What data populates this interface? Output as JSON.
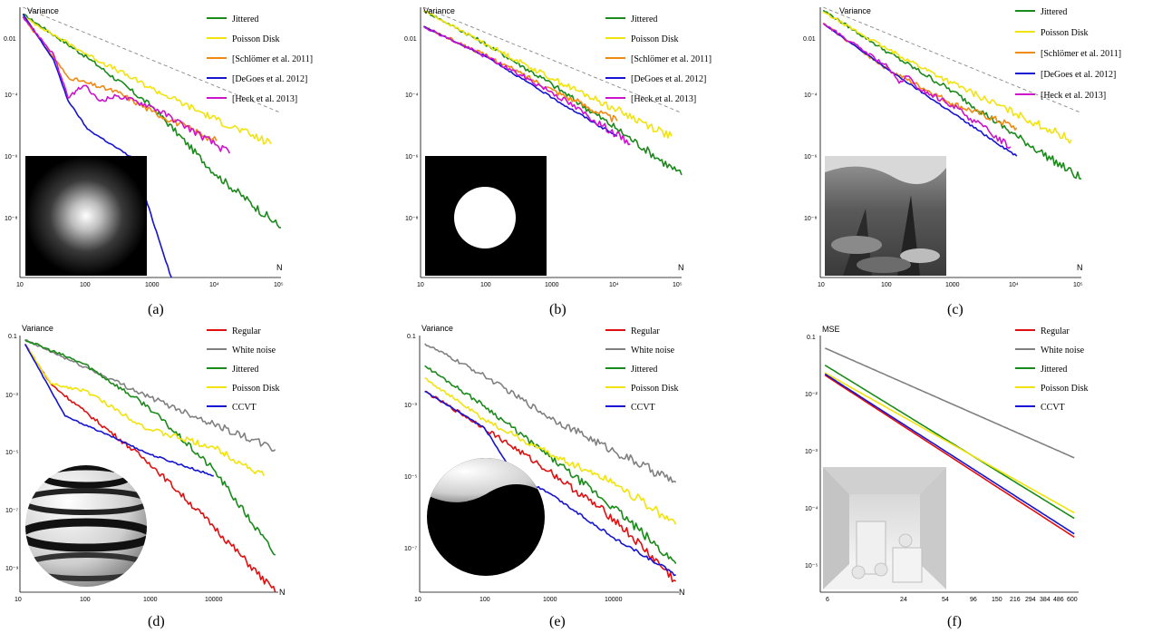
{
  "figure": {
    "colors": {
      "Jittered": "#1a8a1a",
      "Poisson Disk": "#f2e30c",
      "[Schlömer et al. 2011]": "#f08a12",
      "[DeGoes et al. 2012]": "#1414d2",
      "[Heck et al. 2013]": "#cc14cc",
      "Regular": "#e01010",
      "White noise": "#808080",
      "CCVT": "#1414d2",
      "reference": "#888888"
    }
  },
  "chart_data": [
    {
      "type": "line",
      "caption": "(a)",
      "ylabel": "Variance",
      "xlabel": "N",
      "xscale": "log",
      "yscale": "log",
      "xlim": [
        9,
        100000
      ],
      "ylim": [
        1e-10,
        0.05
      ],
      "x_tick_labels": [
        "10",
        "100",
        "1000",
        "10⁴",
        "10⁵"
      ],
      "y_tick_labels": [
        "0.01",
        "10⁻⁴",
        "10⁻⁶",
        "10⁻⁸"
      ],
      "inset": "gaussian-blob",
      "reference_line": [
        [
          10,
          0.05
        ],
        [
          100000,
          2e-05
        ]
      ],
      "series": [
        {
          "name": "Jittered",
          "points": [
            [
              10,
              0.03
            ],
            [
              100,
              0.0012
            ],
            [
              1000,
              3.2e-05
            ],
            [
              10000,
              2e-07
            ],
            [
              100000,
              4e-09
            ]
          ]
        },
        {
          "name": "Poisson Disk",
          "points": [
            [
              10,
              0.025
            ],
            [
              100,
              0.0015
            ],
            [
              1000,
              0.00012
            ],
            [
              10000,
              1.2e-05
            ],
            [
              70000,
              2e-06
            ]
          ]
        },
        {
          "name": "[Schlömer et al. 2011]",
          "points": [
            [
              10,
              0.025
            ],
            [
              30,
              0.0012
            ],
            [
              50,
              0.00028
            ],
            [
              100,
              0.00018
            ],
            [
              300,
              9e-05
            ],
            [
              1000,
              2.2e-05
            ],
            [
              10000,
              2.5e-06
            ]
          ]
        },
        {
          "name": "[DeGoes et al. 2012]",
          "points": [
            [
              10,
              0.03
            ],
            [
              30,
              0.001
            ],
            [
              50,
              5e-05
            ],
            [
              100,
              6e-06
            ],
            [
              500,
              7e-07
            ],
            [
              2000,
              1e-10
            ]
          ]
        },
        {
          "name": "[Heck et al. 2013]",
          "points": [
            [
              10,
              0.025
            ],
            [
              30,
              0.0015
            ],
            [
              50,
              6e-05
            ],
            [
              70,
              0.00011
            ],
            [
              90,
              0.00015
            ],
            [
              150,
              5e-05
            ],
            [
              300,
              7e-05
            ],
            [
              1000,
              3.2e-05
            ],
            [
              3000,
              8.5e-06
            ],
            [
              16000,
              1e-06
            ]
          ]
        }
      ]
    },
    {
      "type": "line",
      "caption": "(b)",
      "ylabel": "Variance",
      "xlabel": "N",
      "xscale": "log",
      "yscale": "log",
      "xlim": [
        9,
        100000
      ],
      "ylim": [
        1e-10,
        0.05
      ],
      "x_tick_labels": [
        "10",
        "100",
        "1000",
        "10⁴",
        "10⁵"
      ],
      "y_tick_labels": [
        "0.01",
        "10⁻⁴",
        "10⁻⁶",
        "10⁻⁸"
      ],
      "inset": "white-disk",
      "reference_line": [
        [
          10,
          0.05
        ],
        [
          100000,
          2e-05
        ]
      ],
      "series": [
        {
          "name": "Jittered",
          "points": [
            [
              10,
              0.04
            ],
            [
              100,
              0.003
            ],
            [
              1000,
              0.00016
            ],
            [
              10000,
              6e-06
            ],
            [
              100000,
              2e-07
            ]
          ]
        },
        {
          "name": "Poisson Disk",
          "points": [
            [
              10,
              0.04
            ],
            [
              100,
              0.003
            ],
            [
              1000,
              0.00025
            ],
            [
              10000,
              2.5e-05
            ],
            [
              70000,
              3.5e-06
            ]
          ]
        },
        {
          "name": "[Schlömer et al. 2011]",
          "points": [
            [
              10,
              0.012
            ],
            [
              100,
              0.0013
            ],
            [
              1000,
              0.00011
            ],
            [
              10000,
              1.1e-05
            ]
          ]
        },
        {
          "name": "[DeGoes et al. 2012]",
          "points": [
            [
              10,
              0.012
            ],
            [
              100,
              0.0012
            ],
            [
              1000,
              6e-05
            ],
            [
              10000,
              3.5e-06
            ]
          ]
        },
        {
          "name": "[Heck et al. 2013]",
          "points": [
            [
              10,
              0.012
            ],
            [
              100,
              0.0012
            ],
            [
              1000,
              9e-05
            ],
            [
              16000,
              2e-06
            ]
          ]
        }
      ]
    },
    {
      "type": "line",
      "caption": "(c)",
      "ylabel": "Variance",
      "xlabel": "N",
      "xscale": "log",
      "yscale": "log",
      "xlim": [
        9,
        100000
      ],
      "ylim": [
        1e-10,
        0.05
      ],
      "x_tick_labels": [
        "10",
        "100",
        "1000",
        "10⁴",
        "10⁵"
      ],
      "y_tick_labels": [
        "0.01",
        "10⁻⁴",
        "10⁻⁶",
        "10⁻⁸"
      ],
      "inset": "forest-photo",
      "reference_line": [
        [
          10,
          0.05
        ],
        [
          100000,
          2e-05
        ]
      ],
      "series": [
        {
          "name": "Jittered",
          "points": [
            [
              10,
              0.04
            ],
            [
              100,
              0.0018
            ],
            [
              1000,
              0.0001
            ],
            [
              10000,
              3.5e-06
            ],
            [
              100000,
              1.5e-07
            ]
          ]
        },
        {
          "name": "Poisson Disk",
          "points": [
            [
              10,
              0.035
            ],
            [
              100,
              0.0022
            ],
            [
              1000,
              0.00018
            ],
            [
              10000,
              1.8e-05
            ],
            [
              70000,
              2.7e-06
            ]
          ]
        },
        {
          "name": "[Schlömer et al. 2011]",
          "points": [
            [
              10,
              0.015
            ],
            [
              100,
              0.0005
            ],
            [
              1000,
              4e-05
            ],
            [
              10000,
              6.5e-06
            ]
          ]
        },
        {
          "name": "[DeGoes et al. 2012]",
          "points": [
            [
              10,
              0.015
            ],
            [
              100,
              0.0005
            ],
            [
              1000,
              2e-05
            ],
            [
              10000,
              8e-07
            ]
          ]
        },
        {
          "name": "[Heck et al. 2013]",
          "points": [
            [
              10,
              0.015
            ],
            [
              100,
              0.0006
            ],
            [
              150,
              0.00018
            ],
            [
              200,
              0.0003
            ],
            [
              300,
              0.00012
            ],
            [
              1000,
              3.5e-05
            ],
            [
              8000,
              1.6e-06
            ]
          ]
        }
      ]
    },
    {
      "type": "line",
      "caption": "(d)",
      "ylabel": "Variance",
      "xlabel": "N",
      "xscale": "log",
      "yscale": "log",
      "xlim": [
        10,
        100000
      ],
      "ylim": [
        1e-10,
        0.1
      ],
      "x_tick_labels": [
        "10",
        "100",
        "1000",
        "10000"
      ],
      "y_tick_labels": [
        "0.1",
        "10⁻³",
        "10⁻⁵",
        "10⁻⁷",
        "10⁻⁹"
      ],
      "inset": "striped-sphere",
      "series": [
        {
          "name": "Regular",
          "points": [
            [
              12,
              0.05
            ],
            [
              30,
              0.002
            ],
            [
              100,
              0.00022
            ],
            [
              1000,
              3.5e-06
            ],
            [
              10000,
              2e-08
            ],
            [
              90000,
              1e-10
            ]
          ]
        },
        {
          "name": "White noise",
          "points": [
            [
              12,
              0.07
            ],
            [
              100,
              0.008
            ],
            [
              1000,
              0.0007
            ],
            [
              10000,
              8e-05
            ],
            [
              90000,
              1e-05
            ]
          ]
        },
        {
          "name": "Jittered",
          "points": [
            [
              12,
              0.07
            ],
            [
              100,
              0.01
            ],
            [
              1000,
              0.0003
            ],
            [
              10000,
              2e-06
            ],
            [
              90000,
              2e-09
            ]
          ]
        },
        {
          "name": "Poisson Disk",
          "points": [
            [
              12,
              0.05
            ],
            [
              30,
              0.002
            ],
            [
              100,
              0.0012
            ],
            [
              1000,
              5e-05
            ],
            [
              10000,
              1.2e-05
            ],
            [
              60000,
              1.2e-06
            ]
          ]
        },
        {
          "name": "CCVT",
          "points": [
            [
              12,
              0.05
            ],
            [
              50,
              0.00015
            ],
            [
              300,
              2.5e-05
            ],
            [
              1000,
              7e-06
            ],
            [
              10000,
              1.2e-06
            ]
          ]
        }
      ]
    },
    {
      "type": "line",
      "caption": "(e)",
      "ylabel": "Variance",
      "xlabel": "N",
      "xscale": "log",
      "yscale": "log",
      "xlim": [
        10,
        100000
      ],
      "ylim": [
        1e-08,
        0.1
      ],
      "x_tick_labels": [
        "10",
        "100",
        "1000",
        "10000"
      ],
      "y_tick_labels": [
        "0.1",
        "10⁻³",
        "10⁻⁵",
        "10⁻⁷"
      ],
      "inset": "half-shaded-sphere",
      "series": [
        {
          "name": "Regular",
          "points": [
            [
              12,
              0.003
            ],
            [
              100,
              0.0003
            ],
            [
              1000,
              2e-05
            ],
            [
              10000,
              1e-06
            ],
            [
              90000,
              2e-08
            ]
          ]
        },
        {
          "name": "White noise",
          "points": [
            [
              12,
              0.06
            ],
            [
              100,
              0.008
            ],
            [
              1000,
              0.0006
            ],
            [
              10000,
              7e-05
            ],
            [
              90000,
              1e-05
            ]
          ]
        },
        {
          "name": "Jittered",
          "points": [
            [
              12,
              0.015
            ],
            [
              100,
              0.0012
            ],
            [
              1000,
              5e-05
            ],
            [
              10000,
              2e-06
            ],
            [
              90000,
              6e-08
            ]
          ]
        },
        {
          "name": "Poisson Disk",
          "points": [
            [
              12,
              0.007
            ],
            [
              100,
              0.0005
            ],
            [
              1000,
              6e-05
            ],
            [
              10000,
              1e-05
            ],
            [
              90000,
              7e-07
            ]
          ]
        },
        {
          "name": "CCVT",
          "points": [
            [
              12,
              0.003
            ],
            [
              100,
              0.0003
            ],
            [
              300,
              1.5e-05
            ],
            [
              1000,
              5e-06
            ],
            [
              10000,
              3e-07
            ],
            [
              90000,
              3e-08
            ]
          ]
        }
      ]
    },
    {
      "type": "line",
      "caption": "(f)",
      "ylabel": "MSE",
      "xscale": "log",
      "yscale": "log",
      "xlim": [
        5.5,
        650
      ],
      "ylim": [
        3e-06,
        0.1
      ],
      "x_tick_labels": [
        "6",
        "24",
        "54",
        "96",
        "150",
        "216",
        "294",
        "384",
        "486",
        "600"
      ],
      "y_tick_labels": [
        "0.1",
        "10⁻²",
        "10⁻³",
        "10⁻⁴",
        "10⁻⁵"
      ],
      "inset": "cornell-box",
      "series": [
        {
          "name": "Regular",
          "points": [
            [
              6,
              0.02
            ],
            [
              600,
              2.8e-05
            ]
          ]
        },
        {
          "name": "White noise",
          "points": [
            [
              6,
              0.06
            ],
            [
              600,
              0.0007
            ]
          ]
        },
        {
          "name": "Jittered",
          "points": [
            [
              6,
              0.03
            ],
            [
              600,
              6e-05
            ]
          ]
        },
        {
          "name": "Poisson Disk",
          "points": [
            [
              6,
              0.022
            ],
            [
              600,
              7.5e-05
            ]
          ]
        },
        {
          "name": "CCVT",
          "points": [
            [
              6,
              0.021
            ],
            [
              600,
              3.2e-05
            ]
          ]
        }
      ]
    }
  ]
}
